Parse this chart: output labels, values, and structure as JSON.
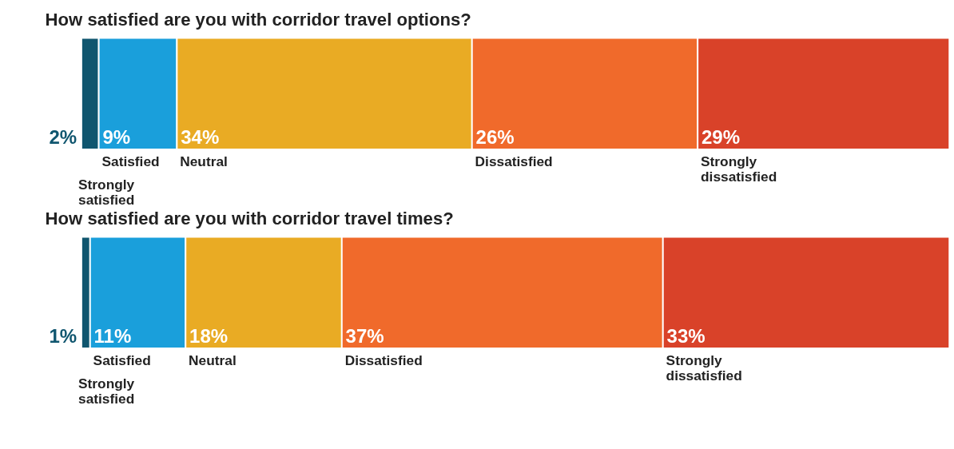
{
  "chart_data": [
    {
      "type": "bar",
      "orientation": "horizontal",
      "stacked": true,
      "title": "How satisfied are you with corridor travel options?",
      "categories": [
        null
      ],
      "grid": false,
      "tick_labels": false,
      "series": [
        {
          "name": "Strongly satisfied",
          "color": "#10566f",
          "values": [
            2
          ],
          "value_labels": [
            "2%"
          ]
        },
        {
          "name": "Satisfied",
          "color": "#1a9fdb",
          "values": [
            9
          ],
          "value_labels": [
            "9%"
          ]
        },
        {
          "name": "Neutral",
          "color": "#e9ab24",
          "values": [
            34
          ],
          "value_labels": [
            "34%"
          ]
        },
        {
          "name": "Dissatisfied",
          "color": "#f06a2b",
          "values": [
            26
          ],
          "value_labels": [
            "26%"
          ]
        },
        {
          "name": "Strongly dissatisfied",
          "color": "#d94229",
          "values": [
            29
          ],
          "value_labels": [
            "29%"
          ]
        }
      ]
    },
    {
      "type": "bar",
      "orientation": "horizontal",
      "stacked": true,
      "title": "How satisfied are you with corridor travel times?",
      "categories": [
        null
      ],
      "grid": false,
      "tick_labels": false,
      "series": [
        {
          "name": "Strongly satisfied",
          "color": "#10566f",
          "values": [
            1
          ],
          "value_labels": [
            "1%"
          ]
        },
        {
          "name": "Satisfied",
          "color": "#1a9fdb",
          "values": [
            11
          ],
          "value_labels": [
            "11%"
          ]
        },
        {
          "name": "Neutral",
          "color": "#e9ab24",
          "values": [
            18
          ],
          "value_labels": [
            "18%"
          ]
        },
        {
          "name": "Dissatisfied",
          "color": "#f06a2b",
          "values": [
            37
          ],
          "value_labels": [
            "37%"
          ]
        },
        {
          "name": "Strongly dissatisfied",
          "color": "#d94229",
          "values": [
            33
          ],
          "value_labels": [
            "33%"
          ]
        }
      ]
    }
  ]
}
